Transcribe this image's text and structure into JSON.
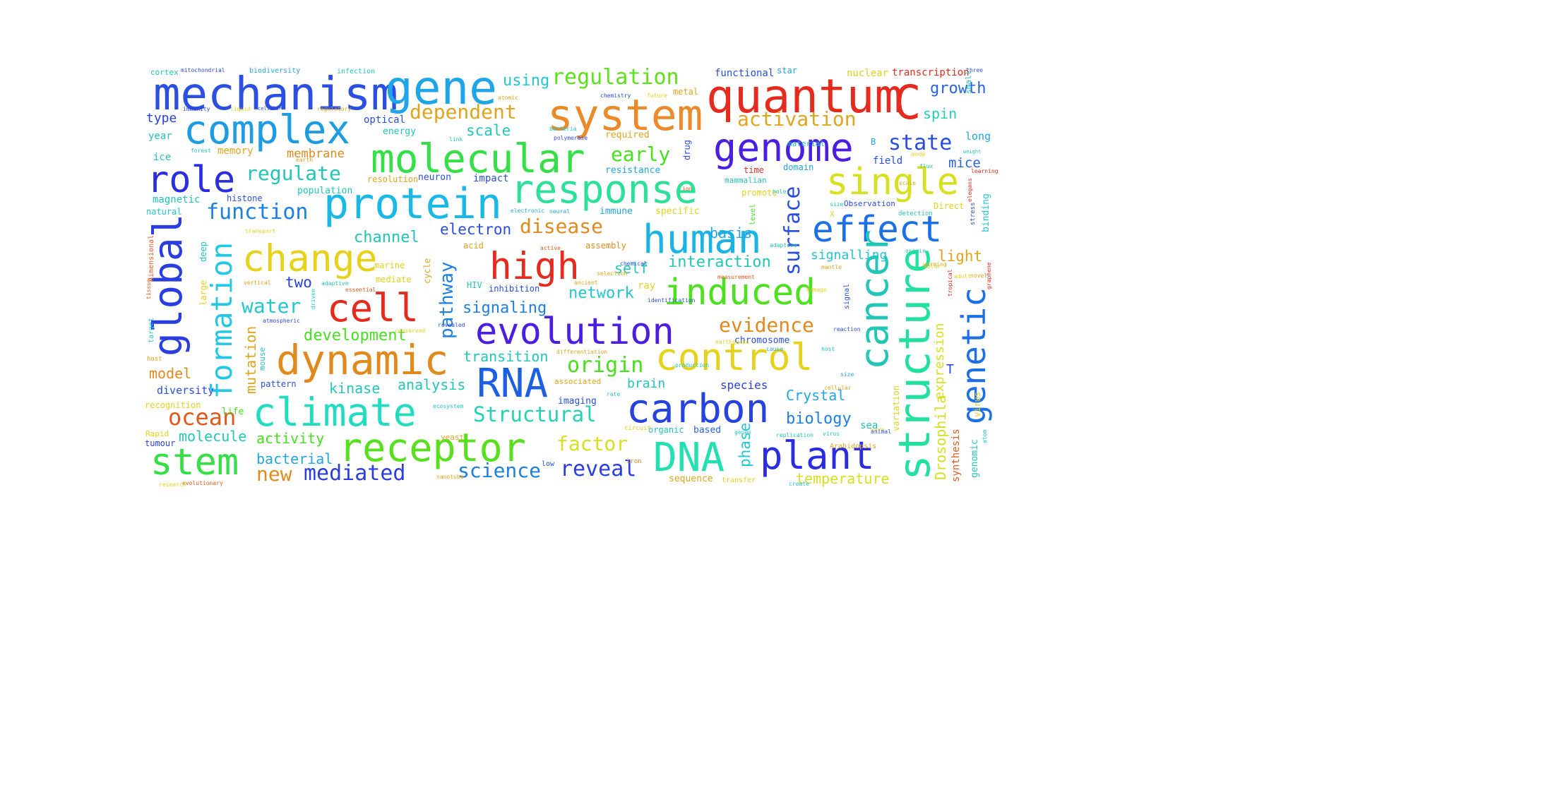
{
  "word_cloud": {
    "words": [
      {
        "text": "mechanism",
        "color": "#2b4fe0"
      },
      {
        "text": "gene",
        "color": "#1fa6e8"
      },
      {
        "text": "quantum",
        "color": "#e52a1e"
      },
      {
        "text": "C",
        "color": "#e52a1e"
      },
      {
        "text": "system",
        "color": "#ea8a2a"
      },
      {
        "text": "complex",
        "color": "#1d9be3"
      },
      {
        "text": "molecular",
        "color": "#33e046"
      },
      {
        "text": "genome",
        "color": "#4a1fe0"
      },
      {
        "text": "role",
        "color": "#2a2ee0"
      },
      {
        "text": "protein",
        "color": "#1ab8e6"
      },
      {
        "text": "response",
        "color": "#2de09a"
      },
      {
        "text": "single",
        "color": "#d6e01e"
      },
      {
        "text": "global",
        "color": "#2a3ee0"
      },
      {
        "text": "human",
        "color": "#1ab3e6"
      },
      {
        "text": "effect",
        "color": "#1c6fe4"
      },
      {
        "text": "change",
        "color": "#e6d21a"
      },
      {
        "text": "high",
        "color": "#e52a1e"
      },
      {
        "text": "formation",
        "color": "#21c8e5"
      },
      {
        "text": "induced",
        "color": "#4ce01e"
      },
      {
        "text": "cell",
        "color": "#e52a1e"
      },
      {
        "text": "cancer",
        "color": "#22c6b7"
      },
      {
        "text": "structure",
        "color": "#22e0a0"
      },
      {
        "text": "genetic",
        "color": "#1c6fe4"
      },
      {
        "text": "evolution",
        "color": "#4a1fe0"
      },
      {
        "text": "dynamic",
        "color": "#e08a1e"
      },
      {
        "text": "control",
        "color": "#e6d21a"
      },
      {
        "text": "RNA",
        "color": "#1c5fe4"
      },
      {
        "text": "climate",
        "color": "#22dcc0"
      },
      {
        "text": "carbon",
        "color": "#2642e0"
      },
      {
        "text": "receptor",
        "color": "#58e01e"
      },
      {
        "text": "DNA",
        "color": "#22e0b0"
      },
      {
        "text": "plant",
        "color": "#2a2ee0"
      },
      {
        "text": "stem",
        "color": "#33e046"
      },
      {
        "text": "regulation",
        "color": "#5ee01e"
      },
      {
        "text": "using",
        "color": "#22c6d2"
      },
      {
        "text": "dependent",
        "color": "#e0a41e"
      },
      {
        "text": "activation",
        "color": "#e0a41e"
      },
      {
        "text": "growth",
        "color": "#2a62e0"
      },
      {
        "text": "spin",
        "color": "#22d2b0"
      },
      {
        "text": "type",
        "color": "#2a3ee0"
      },
      {
        "text": "scale",
        "color": "#22c6b7"
      },
      {
        "text": "early",
        "color": "#46e01e"
      },
      {
        "text": "state",
        "color": "#2a4ee0"
      },
      {
        "text": "long",
        "color": "#22a6e0"
      },
      {
        "text": "mice",
        "color": "#2a62e0"
      },
      {
        "text": "regulate",
        "color": "#22c6b7"
      },
      {
        "text": "function",
        "color": "#1d7fe3"
      },
      {
        "text": "surface",
        "color": "#2a4ee0"
      },
      {
        "text": "disease",
        "color": "#e08a1e"
      },
      {
        "text": "electron",
        "color": "#2a4ee0"
      },
      {
        "text": "pathway",
        "color": "#1d7fe3"
      },
      {
        "text": "interaction",
        "color": "#22c6b7"
      },
      {
        "text": "self",
        "color": "#22c6b7"
      },
      {
        "text": "signalling",
        "color": "#22c6d2"
      },
      {
        "text": "light",
        "color": "#e0a41e"
      },
      {
        "text": "channel",
        "color": "#22c6b7"
      },
      {
        "text": "basis",
        "color": "#22a6e0"
      },
      {
        "text": "water",
        "color": "#22c6d2"
      },
      {
        "text": "two",
        "color": "#2a3ee0"
      },
      {
        "text": "network",
        "color": "#22c6d2"
      },
      {
        "text": "signaling",
        "color": "#1d7fe3"
      },
      {
        "text": "evidence",
        "color": "#e08a1e"
      },
      {
        "text": "development",
        "color": "#46e01e"
      },
      {
        "text": "expression",
        "color": "#d6e01e"
      },
      {
        "text": "origin",
        "color": "#46e01e"
      },
      {
        "text": "transition",
        "color": "#22c6b7"
      },
      {
        "text": "model",
        "color": "#e08a1e"
      },
      {
        "text": "mutation",
        "color": "#e0a41e"
      },
      {
        "text": "kinase",
        "color": "#22c6b7"
      },
      {
        "text": "analysis",
        "color": "#22c6b7"
      },
      {
        "text": "brain",
        "color": "#22c6b7"
      },
      {
        "text": "species",
        "color": "#2a3ee0"
      },
      {
        "text": "Crystal",
        "color": "#22a6e0"
      },
      {
        "text": "Drosophila",
        "color": "#d6e01e"
      },
      {
        "text": "T",
        "color": "#2a3ee0"
      },
      {
        "text": "ocean",
        "color": "#e05a1e"
      },
      {
        "text": "diversity",
        "color": "#2a4ee0"
      },
      {
        "text": "Structural",
        "color": "#22d2b0"
      },
      {
        "text": "biology",
        "color": "#1d7fe3"
      },
      {
        "text": "molecule",
        "color": "#22c6b7"
      },
      {
        "text": "activity",
        "color": "#46e01e"
      },
      {
        "text": "factor",
        "color": "#d6e01e"
      },
      {
        "text": "phase",
        "color": "#22c6d2"
      },
      {
        "text": "sea",
        "color": "#22c6b7"
      },
      {
        "text": "bacterial",
        "color": "#22a6e0"
      },
      {
        "text": "new",
        "color": "#e08a1e"
      },
      {
        "text": "mediated",
        "color": "#2a3ee0"
      },
      {
        "text": "science",
        "color": "#1d7fe3"
      },
      {
        "text": "reveal",
        "color": "#2a3ee0"
      },
      {
        "text": "temperature",
        "color": "#d6e01e"
      },
      {
        "text": "synthesis",
        "color": "#e05a1e"
      },
      {
        "text": "genomic",
        "color": "#22c6b7"
      },
      {
        "text": "sequence",
        "color": "#e0a41e"
      },
      {
        "text": "transcription",
        "color": "#e52a1e"
      },
      {
        "text": "nuclear",
        "color": "#e0d21e"
      },
      {
        "text": "functional",
        "color": "#2a4ee0"
      },
      {
        "text": "star",
        "color": "#22a6e0"
      },
      {
        "text": "membrane",
        "color": "#e08a1e"
      },
      {
        "text": "memory",
        "color": "#e0a41e"
      },
      {
        "text": "energy",
        "color": "#22c6b7"
      },
      {
        "text": "optical",
        "color": "#2a4ee0"
      },
      {
        "text": "year",
        "color": "#22c6b7"
      },
      {
        "text": "ice",
        "color": "#22c6b7"
      },
      {
        "text": "magnetic",
        "color": "#22c6b7"
      },
      {
        "text": "natural",
        "color": "#22c6d2"
      },
      {
        "text": "histone",
        "color": "#2a4ee0"
      },
      {
        "text": "population",
        "color": "#22c6b7"
      },
      {
        "text": "neuron",
        "color": "#2a4ee0"
      },
      {
        "text": "impact",
        "color": "#2a4ee0"
      },
      {
        "text": "resolution",
        "color": "#e0a41e"
      },
      {
        "text": "resistance",
        "color": "#22a6e0"
      },
      {
        "text": "required",
        "color": "#e0a41e"
      },
      {
        "text": "metal",
        "color": "#e0a41e"
      },
      {
        "text": "drug",
        "color": "#2a4ee0"
      },
      {
        "text": "time",
        "color": "#e52a1e"
      },
      {
        "text": "domain",
        "color": "#22a6e0"
      },
      {
        "text": "mammalian",
        "color": "#22c6b7"
      },
      {
        "text": "promote",
        "color": "#e0d21e"
      },
      {
        "text": "field",
        "color": "#2a4ee0"
      },
      {
        "text": "immune",
        "color": "#22a6e0"
      },
      {
        "text": "specific",
        "color": "#e0d21e"
      },
      {
        "text": "Observation",
        "color": "#2a4ee0"
      },
      {
        "text": "Direct",
        "color": "#e0d21e"
      },
      {
        "text": "binding",
        "color": "#22c6d2"
      },
      {
        "text": "ray",
        "color": "#e0d21e"
      },
      {
        "text": "assembly",
        "color": "#e08a1e"
      },
      {
        "text": "acid",
        "color": "#e0a41e"
      },
      {
        "text": "HIV",
        "color": "#22c6b7"
      },
      {
        "text": "inhibition",
        "color": "#2a4ee0"
      },
      {
        "text": "mediate",
        "color": "#e0d21e"
      },
      {
        "text": "marine",
        "color": "#e0d21e"
      },
      {
        "text": "cycle",
        "color": "#e0a41e"
      },
      {
        "text": "chromosome",
        "color": "#2a4ee0"
      },
      {
        "text": "imaging",
        "color": "#2a4ee0"
      },
      {
        "text": "associated",
        "color": "#e0a41e"
      },
      {
        "text": "organic",
        "color": "#22c6b7"
      },
      {
        "text": "based",
        "color": "#2a62e0"
      },
      {
        "text": "Arabidopsis",
        "color": "#e0a41e"
      },
      {
        "text": "variation",
        "color": "#e0d21e"
      },
      {
        "text": "virus",
        "color": "#e0d21e"
      },
      {
        "text": "yeast",
        "color": "#e0a41e"
      },
      {
        "text": "pattern",
        "color": "#2a4ee0"
      },
      {
        "text": "mouse",
        "color": "#22c6b7"
      },
      {
        "text": "large",
        "color": "#e0d21e"
      },
      {
        "text": "deep",
        "color": "#22c6b7"
      },
      {
        "text": "life",
        "color": "#46e01e"
      },
      {
        "text": "recognition",
        "color": "#e0d21e"
      },
      {
        "text": "tumour",
        "color": "#2a3ee0"
      },
      {
        "text": "Rapid",
        "color": "#e0d21e"
      },
      {
        "text": "cortex",
        "color": "#22c6b7"
      },
      {
        "text": "mitochondrial",
        "color": "#2a4ee0"
      },
      {
        "text": "biodiversity",
        "color": "#22a6e0"
      },
      {
        "text": "infection",
        "color": "#22c6b7"
      },
      {
        "text": "three",
        "color": "#2a4ee0"
      },
      {
        "text": "immunity",
        "color": "#2a3ee0"
      },
      {
        "text": "liquid",
        "color": "#e0d21e"
      },
      {
        "text": "cellular",
        "color": "#2a4ee0"
      },
      {
        "text": "regulatory",
        "color": "#e0a41e"
      },
      {
        "text": "atomic",
        "color": "#e0a41e"
      },
      {
        "text": "evolutionary",
        "color": "#e05a1e"
      },
      {
        "text": "nanotube",
        "color": "#e0a41e"
      },
      {
        "text": "transfer",
        "color": "#e0d21e"
      },
      {
        "text": "dimensional",
        "color": "#e05a1e"
      },
      {
        "text": "target",
        "color": "#22c6d2"
      },
      {
        "text": "host",
        "color": "#e0a41e"
      },
      {
        "text": "transport",
        "color": "#e0d21e"
      },
      {
        "text": "signal",
        "color": "#2a4ee0"
      },
      {
        "text": "level",
        "color": "#46e01e"
      },
      {
        "text": "neural",
        "color": "#22a6e0"
      },
      {
        "text": "electronic",
        "color": "#22a6e0"
      },
      {
        "text": "X",
        "color": "#e0d21e"
      },
      {
        "text": "B",
        "color": "#22a6e0"
      },
      {
        "text": "stress",
        "color": "#2a4ee0"
      },
      {
        "text": "elegans",
        "color": "#e52a1e"
      },
      {
        "text": "detection",
        "color": "#22c6b7"
      },
      {
        "text": "small",
        "color": "#22c6b7"
      },
      {
        "text": "ion",
        "color": "#e05a1e"
      },
      {
        "text": "earth",
        "color": "#e0a41e"
      },
      {
        "text": "low",
        "color": "#2a4ee0"
      },
      {
        "text": "iron",
        "color": "#e08a1e"
      },
      {
        "text": "circuit",
        "color": "#e0d21e"
      },
      {
        "text": "material",
        "color": "#22c6b7"
      },
      {
        "text": "polymerase",
        "color": "#2a4ee0"
      },
      {
        "text": "bacteria",
        "color": "#22c6d2"
      },
      {
        "text": "forest",
        "color": "#22c6b7"
      },
      {
        "text": "link",
        "color": "#22c6b7"
      },
      {
        "text": "future",
        "color": "#e0d21e"
      },
      {
        "text": "chemistry",
        "color": "#2a4ee0"
      },
      {
        "text": "weight",
        "color": "#22c6b7"
      },
      {
        "text": "learning",
        "color": "#e52a1e"
      },
      {
        "text": "adaptive",
        "color": "#22c6b7"
      },
      {
        "text": "essential",
        "color": "#e05a1e"
      },
      {
        "text": "revealed",
        "color": "#2a4ee0"
      },
      {
        "text": "driven",
        "color": "#22c6b7"
      },
      {
        "text": "atmospheric",
        "color": "#2a4ee0"
      },
      {
        "text": "differentiation",
        "color": "#e0a41e"
      },
      {
        "text": "production",
        "color": "#22c6b7"
      },
      {
        "text": "identification",
        "color": "#2a4ee0"
      },
      {
        "text": "measurement",
        "color": "#e05a1e"
      },
      {
        "text": "damage",
        "color": "#e0d21e"
      },
      {
        "text": "tropical",
        "color": "#e52a1e"
      },
      {
        "text": "graphene",
        "color": "#e52a1e"
      },
      {
        "text": "earthquake",
        "color": "#e0d21e"
      },
      {
        "text": "reaction",
        "color": "#2a4ee0"
      },
      {
        "text": "replication",
        "color": "#22c6b7"
      },
      {
        "text": "genes",
        "color": "#22c6b7"
      },
      {
        "text": "conserved",
        "color": "#e0d21e"
      },
      {
        "text": "vertical",
        "color": "#e0a41e"
      },
      {
        "text": "tissue",
        "color": "#e05a1e"
      },
      {
        "text": "ecosystem",
        "color": "#22c6b7"
      },
      {
        "text": "research",
        "color": "#e0d21e"
      },
      {
        "text": "create",
        "color": "#22c6d2"
      },
      {
        "text": "atom",
        "color": "#22c6b7"
      },
      {
        "text": "adult",
        "color": "#e0d21e"
      },
      {
        "text": "cause",
        "color": "#22a6e0"
      },
      {
        "text": "cellular",
        "color": "#e0a41e"
      },
      {
        "text": "host",
        "color": "#22c6b7"
      },
      {
        "text": "ancient",
        "color": "#e0a41e"
      },
      {
        "text": "mantle",
        "color": "#e0a41e"
      },
      {
        "text": "warming",
        "color": "#e0a41e"
      },
      {
        "text": "adaptive",
        "color": "#22c6b7"
      },
      {
        "text": "active",
        "color": "#e05a1e"
      },
      {
        "text": "rate",
        "color": "#22c6b7"
      },
      {
        "text": "selection",
        "color": "#e0a41e"
      },
      {
        "text": "chemical",
        "color": "#2a4ee0"
      },
      {
        "text": "solar",
        "color": "#e0d21e"
      },
      {
        "text": "novel",
        "color": "#e0a41e"
      },
      {
        "text": "hole",
        "color": "#22c6b7"
      },
      {
        "text": "wave",
        "color": "#e0d21e"
      },
      {
        "text": "animal",
        "color": "#2a4ee0"
      },
      {
        "text": "size",
        "color": "#22a6e0"
      },
      {
        "text": "origin",
        "color": "#22c6b7"
      },
      {
        "text": "virus",
        "color": "#22c6b7"
      },
      {
        "text": "size",
        "color": "#22c6b7"
      },
      {
        "text": "scale",
        "color": "#e0a41e"
      },
      {
        "text": "flux",
        "color": "#22c6b7"
      },
      {
        "text": "mode",
        "color": "#e0d21e"
      },
      {
        "text": "laser",
        "color": "#e52a1e"
      },
      {
        "text": "neuronal",
        "color": "#22c6b7"
      }
    ]
  }
}
